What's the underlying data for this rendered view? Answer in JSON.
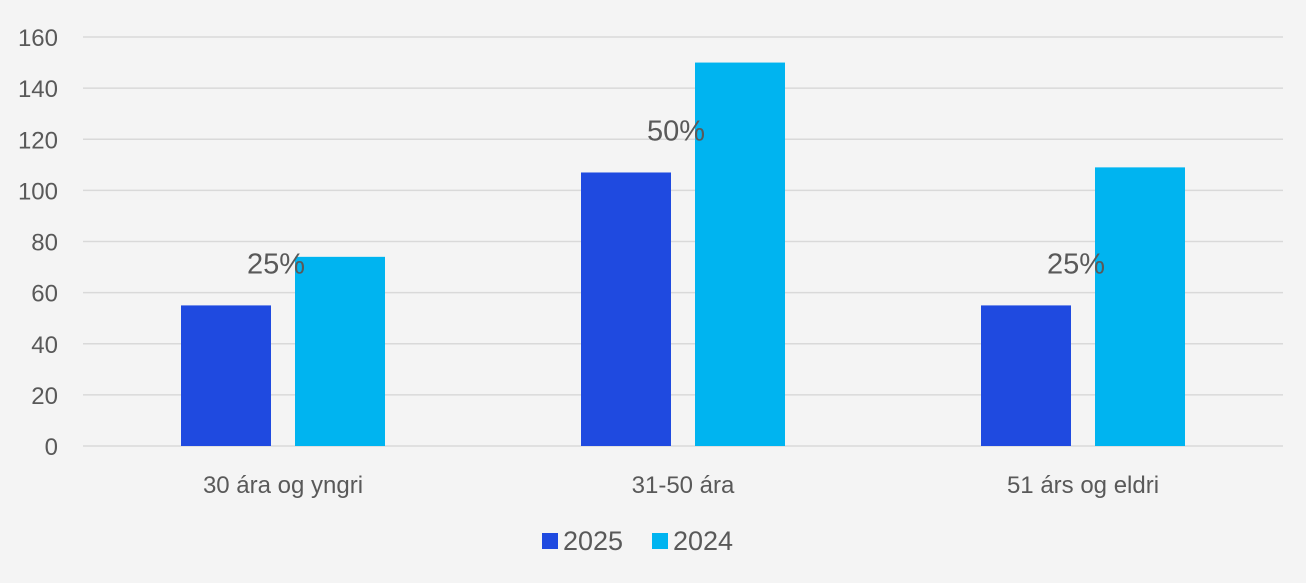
{
  "chart_data": {
    "type": "bar",
    "categories": [
      "30 ára og yngri",
      "31-50 ára",
      "51 árs og eldri"
    ],
    "series": [
      {
        "name": "2025",
        "values": [
          55,
          107,
          55
        ],
        "color": "#1f4ae0"
      },
      {
        "name": "2024",
        "values": [
          74,
          150,
          109
        ],
        "color": "#00b4f0"
      }
    ],
    "data_labels": [
      {
        "category": "30 ára og yngri",
        "text": "25%"
      },
      {
        "category": "31-50 ára",
        "text": "50%"
      },
      {
        "category": "51 árs og eldri",
        "text": "25%"
      }
    ],
    "yticks": [
      0,
      20,
      40,
      60,
      80,
      100,
      120,
      140,
      160
    ],
    "ylim": [
      0,
      160
    ],
    "grid": true,
    "legend": "bottom",
    "title": "",
    "xlabel": "",
    "ylabel": ""
  }
}
